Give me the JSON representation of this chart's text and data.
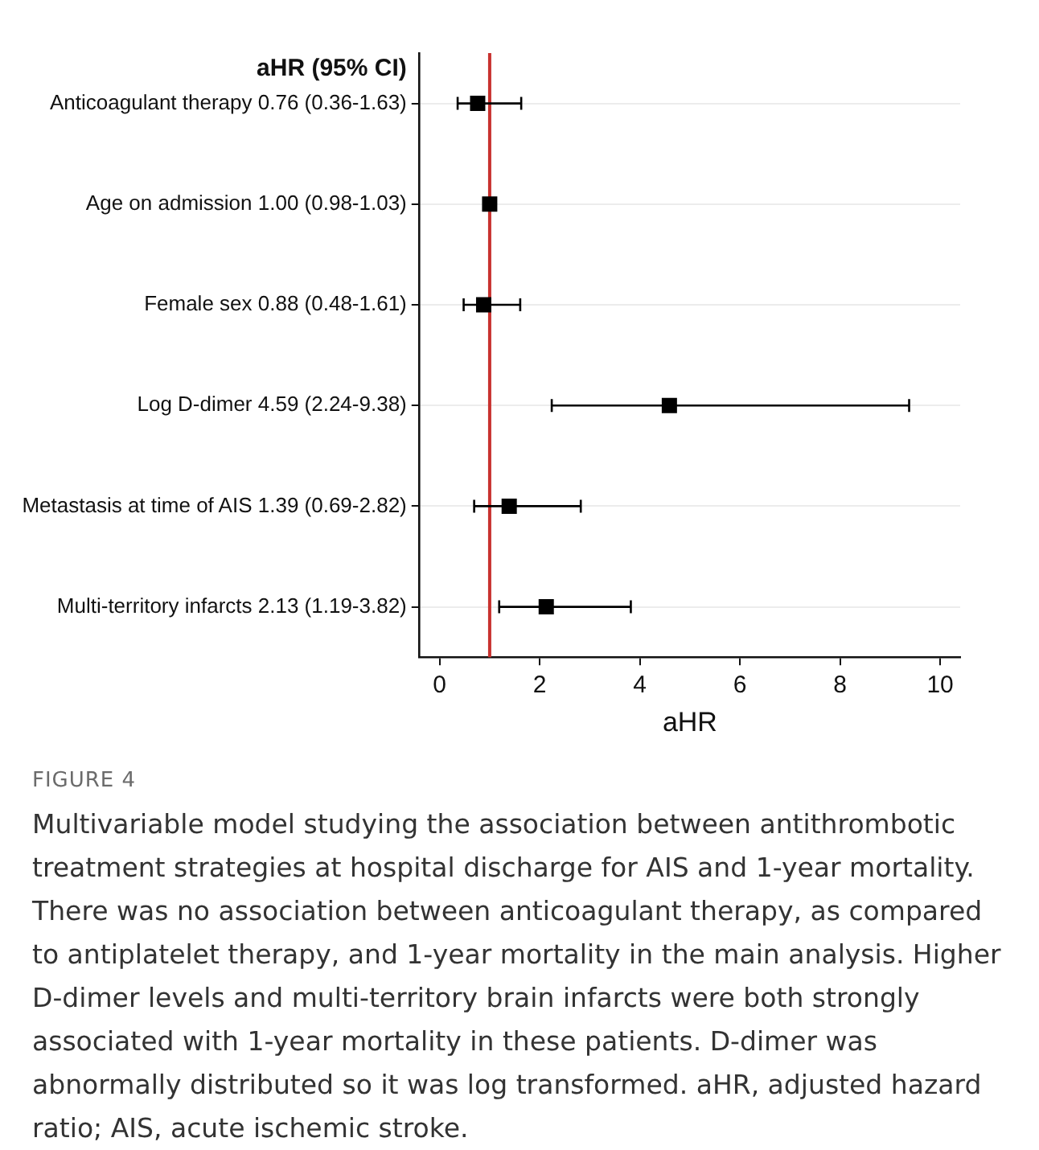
{
  "chart_data": {
    "type": "scatter",
    "orientation": "horizontal",
    "title": "aHR (95% CI)",
    "xlabel": "aHR",
    "categories": [
      "Anticoagulant therapy 0.76 (0.36-1.63)",
      "Age on admission 1.00 (0.98-1.03)",
      "Female sex 0.88 (0.48-1.61)",
      "Log D-dimer 4.59 (2.24-9.38)",
      "Metastasis at time of AIS 1.39 (0.69-2.82)",
      "Multi-territory infarcts 2.13 (1.19-3.82)"
    ],
    "values": [
      0.76,
      1.0,
      0.88,
      4.59,
      1.39,
      2.13
    ],
    "errors": [
      [
        0.36,
        1.63
      ],
      [
        0.98,
        1.03
      ],
      [
        0.48,
        1.61
      ],
      [
        2.24,
        9.38
      ],
      [
        0.69,
        2.82
      ],
      [
        1.19,
        3.82
      ]
    ],
    "color": "#000000",
    "marker": "square",
    "grid": "y",
    "legend": false,
    "xlim": [
      -0.4,
      10.4
    ],
    "xticks": [
      0,
      2,
      4,
      6,
      8,
      10
    ],
    "ref_lines": [
      {
        "axis": "x",
        "value": 1,
        "color": "#c8322f"
      }
    ],
    "annotations": [
      "FIGURE 4",
      "Multivariable model studying the association between antithrombotic treatment strategies at hospital discharge for AIS and 1-year mortality. There was no association between anticoagulant therapy, as compared to antiplatelet therapy, and 1-year mortality in the main analysis. Higher D-dimer levels and multi-territory brain infarcts were both strongly associated with 1-year mortality in these patients. D-dimer was abnormally distributed so it was log transformed. aHR, adjusted hazard ratio; AIS, acute ischemic stroke."
    ]
  }
}
